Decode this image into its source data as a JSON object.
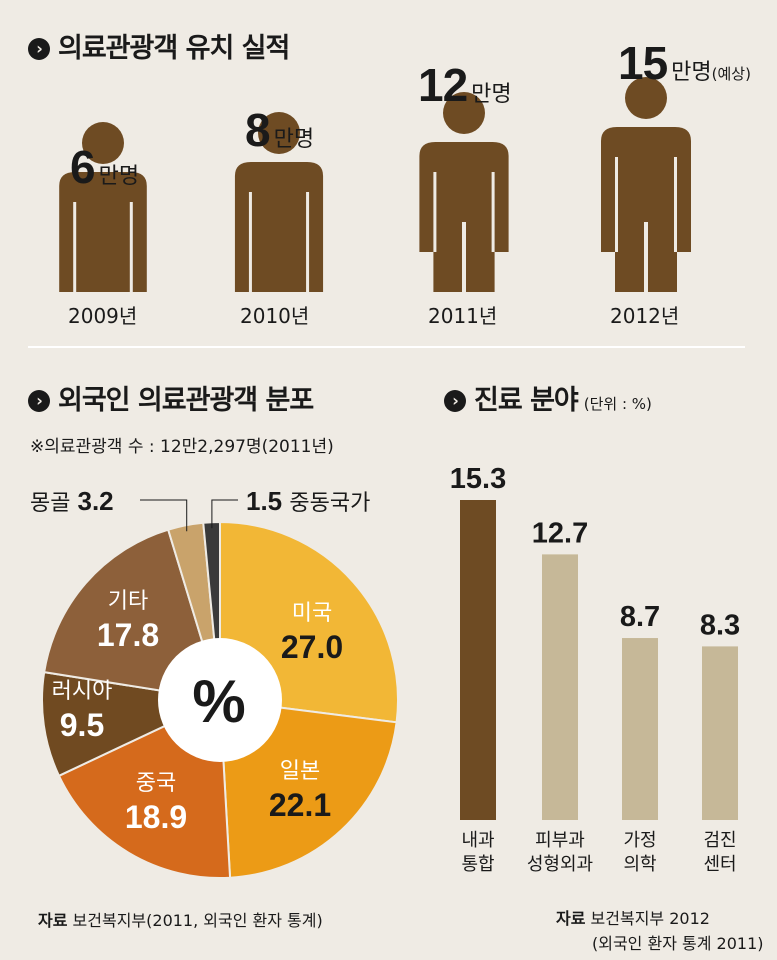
{
  "colors": {
    "figure": "#6e4b23",
    "background": "#efebe4",
    "bar_main": "#6e4b23",
    "bar_other": "#c6b898"
  },
  "top": {
    "title": "의료관광객 유치 실적",
    "unit": "만명",
    "forecast_note": "(예상)",
    "figures": [
      {
        "year": "2009년",
        "value": "6"
      },
      {
        "year": "2010년",
        "value": "8"
      },
      {
        "year": "2011년",
        "value": "12"
      },
      {
        "year": "2012년",
        "value": "15"
      }
    ]
  },
  "pie": {
    "title": "외국인 의료관광객 분포",
    "subnote": "※의료관광객 수 : 12만2,297명(2011년)",
    "center_label": "%",
    "source_bold": "자료",
    "source": "보건복지부(2011, 외국인 환자 통계)"
  },
  "bars": {
    "title": "진료 분야",
    "unit_note": "(단위 : %)",
    "source_bold": "자료",
    "source_line1": "보건복지부 2012",
    "source_line2": "(외국인 환자 통계 2011)"
  },
  "chart_data": [
    {
      "type": "bar",
      "title": "의료관광객 유치 실적",
      "categories": [
        "2009년",
        "2010년",
        "2011년",
        "2012년"
      ],
      "values": [
        6,
        8,
        12,
        15
      ],
      "unit": "만명"
    },
    {
      "type": "pie",
      "title": "외국인 의료관광객 분포",
      "slices": [
        {
          "label": "미국",
          "value": 27.0,
          "display": "27.0",
          "color": "#f2b736"
        },
        {
          "label": "일본",
          "value": 22.1,
          "display": "22.1",
          "color": "#ec9b16"
        },
        {
          "label": "중국",
          "value": 18.9,
          "display": "18.9",
          "color": "#d56a1c"
        },
        {
          "label": "러시아",
          "value": 9.5,
          "display": "9.5",
          "color": "#704a21"
        },
        {
          "label": "기타",
          "value": 17.8,
          "display": "17.8",
          "color": "#8d603a"
        },
        {
          "label": "몽골",
          "value": 3.2,
          "display": "3.2",
          "color": "#c9a36b"
        },
        {
          "label": "중동국가",
          "value": 1.5,
          "display": "1.5",
          "color": "#3a3a3a"
        }
      ]
    },
    {
      "type": "bar",
      "title": "진료 분야",
      "categories": [
        [
          "내과",
          "통합"
        ],
        [
          "피부과",
          "성형외과"
        ],
        [
          "가정",
          "의학"
        ],
        [
          "검진",
          "센터"
        ]
      ],
      "values": [
        15.3,
        12.7,
        8.7,
        8.3
      ],
      "display_values": [
        "15.3",
        "12.7",
        "8.7",
        "8.3"
      ],
      "ylim": [
        0,
        15.3
      ]
    }
  ]
}
